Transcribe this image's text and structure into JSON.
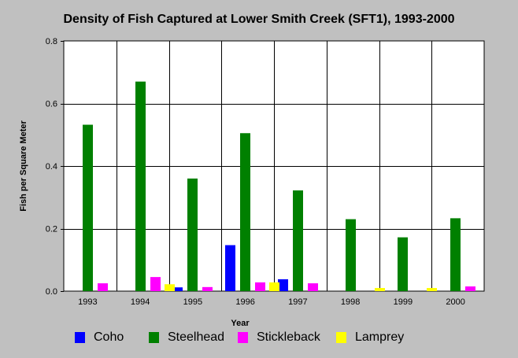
{
  "chart_data": {
    "type": "bar",
    "title": "Density of Fish Captured at Lower Smith Creek (SFT1), 1993-2000",
    "xlabel": "Year",
    "ylabel": "Fish per Square Meter",
    "ylim": [
      0,
      0.8
    ],
    "yticks": [
      "0.0",
      "0.2",
      "0.4",
      "0.6",
      "0.8"
    ],
    "grid": true,
    "legend_position": "bottom",
    "categories": [
      "1993",
      "1994",
      "1995",
      "1996",
      "1997",
      "1998",
      "1999",
      "2000"
    ],
    "series": [
      {
        "name": "Coho",
        "color": "#0000ff",
        "values": [
          0,
          0,
          0.012,
          0.147,
          0.038,
          0,
          0,
          0
        ]
      },
      {
        "name": "Steelhead",
        "color": "#008000",
        "values": [
          0.532,
          0.67,
          0.36,
          0.505,
          0.322,
          0.23,
          0.172,
          0.233
        ]
      },
      {
        "name": "Stickleback",
        "color": "#ff00ff",
        "values": [
          0.025,
          0.045,
          0.013,
          0.028,
          0.025,
          0,
          0,
          0.015
        ]
      },
      {
        "name": "Lamprey",
        "color": "#ffff00",
        "values": [
          0,
          0.022,
          0,
          0.028,
          0,
          0.01,
          0.01,
          0
        ]
      }
    ]
  }
}
